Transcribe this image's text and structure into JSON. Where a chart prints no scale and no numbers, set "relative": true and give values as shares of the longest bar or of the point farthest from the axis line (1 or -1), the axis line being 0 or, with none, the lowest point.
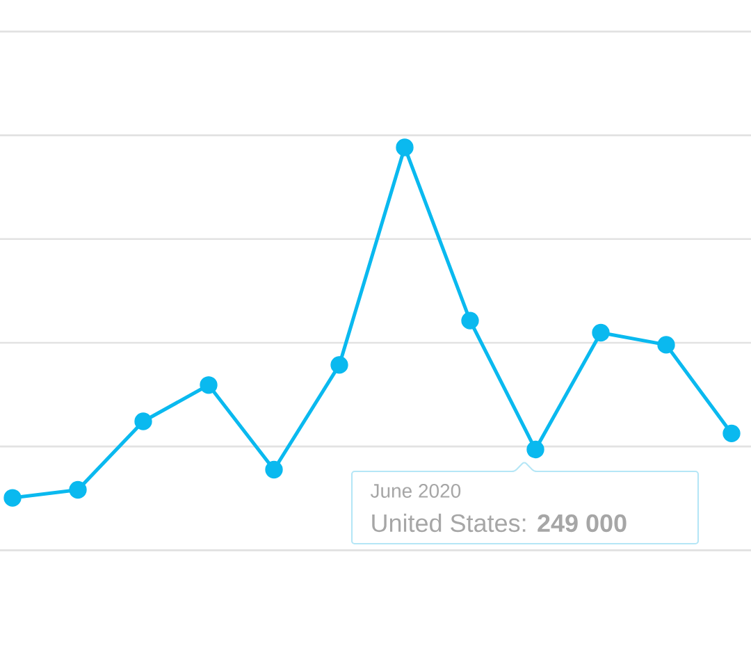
{
  "chart_data": {
    "type": "line",
    "relative": true,
    "categories": [
      null,
      null,
      null,
      null,
      null,
      null,
      null,
      null,
      null,
      null,
      null,
      null
    ],
    "values": [
      0.13,
      0.15,
      0.32,
      0.41,
      0.2,
      0.46,
      1,
      0.57,
      0.25,
      0.54,
      0.51,
      0.29
    ],
    "color": "#0ab9ef",
    "marker": "circle",
    "line_style": "solid",
    "grid": "y",
    "annotations": [
      "June 2020",
      "United States: **249 000**"
    ]
  }
}
